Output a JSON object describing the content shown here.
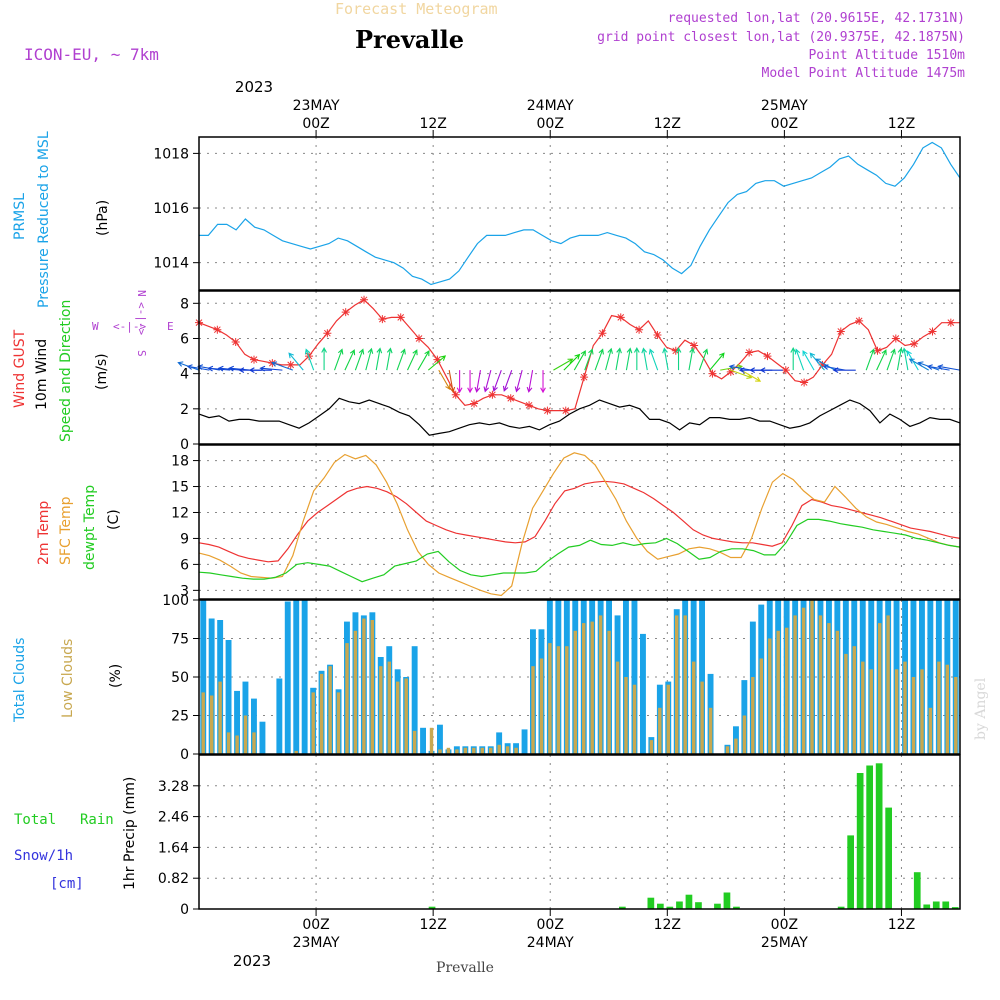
{
  "header": {
    "top_title": "Forecast Meteogram",
    "station": "Prevalle",
    "model": "ICON-EU, ~ 7km",
    "requested": "requested lon,lat (20.9615E, 42.1731N)",
    "grid_point": "grid point closest lon,lat (20.9375E, 42.1875N)",
    "point_alt": "Point Altitude 1510m",
    "model_alt": "Model Point Altitude 1475m",
    "footer_station": "Prevalle",
    "watermark": "by Angel"
  },
  "time_axis": {
    "top_year": "2023",
    "top_labels": [
      {
        "h": 12,
        "main": "00Z",
        "date": "23MAY"
      },
      {
        "h": 24,
        "main": "12Z",
        "date": ""
      },
      {
        "h": 36,
        "main": "00Z",
        "date": "24MAY"
      },
      {
        "h": 48,
        "main": "12Z",
        "date": ""
      },
      {
        "h": 60,
        "main": "00Z",
        "date": "25MAY"
      },
      {
        "h": 72,
        "main": "12Z",
        "date": ""
      }
    ],
    "bottom_year": "2023",
    "bottom_labels": [
      {
        "h": 12,
        "main": "00Z",
        "date": "23MAY"
      },
      {
        "h": 24,
        "main": "12Z",
        "date": ""
      },
      {
        "h": 36,
        "main": "00Z",
        "date": "24MAY"
      },
      {
        "h": 48,
        "main": "12Z",
        "date": ""
      },
      {
        "h": 60,
        "main": "00Z",
        "date": "25MAY"
      },
      {
        "h": 72,
        "main": "12Z",
        "date": ""
      }
    ]
  },
  "panel_labels": {
    "p1": {
      "l1": "PRMSL",
      "l2": "Pressure Reduced to MSL",
      "unit": "(hPa)"
    },
    "p2": {
      "l1": "Wind GUST",
      "l2": "10m Wind",
      "l3": "Speed and Direction",
      "unit": "(m/s)",
      "compass_w": "W",
      "compass_e": "E",
      "compass_arrow": "<-|->",
      "compass_n": "N",
      "compass_s": "S"
    },
    "p3": {
      "l1": "2m Temp",
      "l2": "SFC Temp",
      "l3": "dewpt Temp",
      "unit": "(C)"
    },
    "p4": {
      "l1": "Total Clouds",
      "l2": "Low Clouds",
      "unit": "(%)"
    },
    "p5": {
      "l1": "Total",
      "l1b": "Rain",
      "l2": "Snow/1h",
      "l3": "[cm]",
      "unit": "1hr Precip (mm)"
    }
  },
  "colors": {
    "pressure": "#1aa3e8",
    "gust": "#ee3333",
    "wind": "#000000",
    "t2m": "#ee3333",
    "sfc": "#e8a030",
    "dew": "#22cc22",
    "total_cloud": "#1aa3e8",
    "low_cloud": "#c8a850",
    "rain": "#22cc22",
    "label_purple": "#b040d0",
    "label_blue": "#3333dd"
  },
  "chart_data": [
    {
      "type": "line",
      "title": "PRMSL Pressure Reduced to MSL",
      "ylabel": "(hPa)",
      "ylim": [
        1013,
        1018.6
      ],
      "yticks": [
        "1014",
        "1016",
        "1018"
      ],
      "x_hours": "forecast hour, 0 = 22 May 12Z, hourly to 78",
      "series": [
        {
          "name": "PRMSL",
          "values": [
            1015.0,
            1015.0,
            1015.4,
            1015.4,
            1015.2,
            1015.6,
            1015.3,
            1015.2,
            1015.0,
            1014.8,
            1014.7,
            1014.6,
            1014.5,
            1014.6,
            1014.7,
            1014.9,
            1014.8,
            1014.6,
            1014.4,
            1014.2,
            1014.1,
            1014.0,
            1013.8,
            1013.5,
            1013.4,
            1013.2,
            1013.3,
            1013.4,
            1013.7,
            1014.2,
            1014.7,
            1015.0,
            1015.0,
            1015.0,
            1015.1,
            1015.2,
            1015.2,
            1015.0,
            1014.8,
            1014.7,
            1014.9,
            1015.0,
            1015.0,
            1015.0,
            1015.1,
            1015.0,
            1014.9,
            1014.7,
            1014.4,
            1014.3,
            1014.1,
            1013.8,
            1013.6,
            1013.9,
            1014.6,
            1015.2,
            1015.7,
            1016.2,
            1016.5,
            1016.6,
            1016.9,
            1017.0,
            1017.0,
            1016.8,
            1016.9,
            1017.0,
            1017.1,
            1017.3,
            1017.5,
            1017.8,
            1017.9,
            1017.6,
            1017.4,
            1017.2,
            1016.9,
            1016.8,
            1017.1,
            1017.6,
            1018.2,
            1018.4,
            1018.2,
            1017.6,
            1017.1
          ]
        }
      ]
    },
    {
      "type": "line",
      "title": "Wind GUST / 10m Wind Speed and Direction",
      "ylabel": "(m/s)",
      "ylim": [
        0,
        8.7
      ],
      "yticks": [
        "0",
        "2",
        "4",
        "6",
        "8"
      ],
      "series": [
        {
          "name": "Wind GUST",
          "values": [
            6.9,
            6.7,
            6.5,
            6.2,
            5.8,
            5.1,
            4.8,
            4.7,
            4.6,
            4.5,
            4.5,
            4.5,
            5.0,
            5.7,
            6.3,
            7.0,
            7.5,
            7.9,
            8.2,
            7.7,
            7.1,
            7.2,
            7.2,
            6.6,
            6.0,
            5.5,
            4.8,
            3.8,
            2.8,
            2.2,
            2.3,
            2.6,
            2.8,
            2.8,
            2.6,
            2.4,
            2.2,
            2.0,
            1.9,
            1.9,
            1.9,
            2.0,
            3.8,
            5.6,
            6.3,
            7.3,
            7.2,
            6.8,
            6.5,
            7.0,
            6.2,
            5.5,
            5.3,
            5.9,
            5.6,
            4.9,
            4.0,
            3.7,
            4.1,
            4.6,
            5.2,
            5.3,
            5.0,
            4.6,
            4.2,
            3.6,
            3.5,
            3.8,
            4.5,
            5.1,
            6.4,
            6.8,
            7.0,
            6.5,
            5.3,
            5.5,
            6.0,
            5.6,
            5.7,
            6.1,
            6.4,
            6.9,
            6.9,
            6.9
          ]
        },
        {
          "name": "10m Wind",
          "values": [
            1.7,
            1.5,
            1.6,
            1.3,
            1.4,
            1.4,
            1.3,
            1.3,
            1.3,
            1.1,
            0.9,
            1.2,
            1.6,
            2.0,
            2.6,
            2.4,
            2.3,
            2.5,
            2.3,
            2.1,
            1.8,
            1.6,
            1.1,
            0.5,
            0.6,
            0.7,
            0.9,
            1.1,
            1.2,
            1.1,
            1.2,
            1.0,
            0.9,
            1.0,
            0.8,
            1.1,
            1.3,
            1.7,
            2.0,
            2.2,
            2.5,
            2.3,
            2.1,
            2.2,
            2.0,
            1.4,
            1.4,
            1.2,
            0.8,
            1.2,
            1.1,
            1.5,
            1.5,
            1.4,
            1.4,
            1.5,
            1.3,
            1.3,
            1.1,
            0.9,
            1.0,
            1.2,
            1.6,
            1.9,
            2.2,
            2.5,
            2.3,
            1.9,
            1.2,
            1.7,
            1.4,
            1.0,
            1.2,
            1.5,
            1.4,
            1.4,
            1.2
          ]
        }
      ],
      "wind_arrows": {
        "row_value": 4.2,
        "dir_deg": [
          110,
          100,
          100,
          95,
          95,
          95,
          90,
          90,
          95,
          110,
          140,
          160,
          180,
          200,
          205,
          200,
          195,
          190,
          190,
          200,
          205,
          210,
          230,
          330,
          350,
          0,
          0,
          10,
          15,
          20,
          20,
          15,
          10,
          0,
          240,
          225,
          210,
          200,
          200,
          195,
          190,
          190,
          180,
          170,
          160,
          170,
          180,
          190,
          200,
          220,
          260,
          290,
          300,
          100,
          90,
          90,
          90,
          180,
          160,
          150,
          140,
          120,
          100,
          90,
          200,
          205,
          200,
          190,
          170,
          150,
          120,
          110,
          100,
          100
        ]
      }
    },
    {
      "type": "line",
      "title": "2m Temp / SFC Temp / dewpt Temp",
      "ylabel": "(C)",
      "ylim": [
        2.0,
        19.8
      ],
      "yticks": [
        "3",
        "6",
        "9",
        "12",
        "15",
        "18"
      ],
      "series": [
        {
          "name": "2m Temp",
          "values": [
            8.5,
            8.3,
            8.0,
            7.5,
            7.0,
            6.7,
            6.5,
            6.3,
            6.4,
            7.8,
            9.5,
            11.0,
            12.0,
            12.8,
            13.6,
            14.4,
            14.8,
            15.0,
            14.8,
            14.4,
            13.8,
            13.0,
            12.0,
            11.0,
            10.5,
            10.0,
            9.6,
            9.4,
            9.2,
            9.0,
            8.8,
            8.6,
            8.5,
            8.6,
            9.2,
            11.0,
            13.0,
            14.5,
            14.8,
            15.3,
            15.5,
            15.6,
            15.5,
            15.3,
            14.8,
            14.3,
            13.6,
            12.8,
            12.0,
            11.0,
            10.0,
            9.4,
            9.0,
            8.8,
            8.6,
            8.5,
            8.5,
            8.3,
            8.1,
            8.5,
            10.5,
            12.8,
            13.5,
            13.2,
            12.8,
            12.6,
            12.3,
            12.0,
            11.7,
            11.4,
            11.0,
            10.6,
            10.2,
            10.0,
            9.8,
            9.5,
            9.2,
            9.0
          ]
        },
        {
          "name": "SFC Temp",
          "values": [
            7.3,
            7.0,
            6.5,
            5.8,
            5.0,
            4.6,
            4.5,
            4.4,
            4.6,
            7.0,
            11.0,
            14.5,
            16.0,
            17.8,
            18.7,
            18.2,
            18.6,
            17.5,
            15.5,
            13.0,
            10.0,
            7.5,
            6.0,
            5.0,
            4.5,
            4.0,
            3.5,
            3.0,
            2.6,
            2.4,
            3.5,
            8.5,
            12.5,
            14.5,
            16.5,
            18.3,
            18.9,
            18.6,
            17.5,
            15.5,
            13.5,
            11.0,
            9.0,
            7.5,
            6.6,
            6.9,
            7.2,
            7.8,
            8.0,
            7.8,
            7.4,
            6.8,
            6.8,
            9.0,
            12.5,
            15.5,
            16.5,
            15.8,
            14.5,
            13.5,
            13.2,
            15.0,
            13.8,
            12.5,
            11.5,
            10.9,
            10.6,
            10.2,
            9.8,
            9.5,
            9.0,
            8.5,
            8.2,
            8.0
          ]
        },
        {
          "name": "dewpt Temp",
          "values": [
            5.1,
            5.0,
            4.8,
            4.6,
            4.4,
            4.3,
            4.3,
            4.5,
            5.0,
            6.0,
            6.2,
            6.0,
            5.8,
            5.2,
            4.6,
            4.0,
            4.4,
            4.8,
            5.8,
            6.1,
            6.4,
            7.2,
            7.5,
            6.3,
            5.3,
            4.8,
            4.6,
            4.8,
            5.0,
            5.0,
            5.0,
            5.2,
            6.3,
            7.2,
            8.0,
            8.2,
            8.8,
            8.3,
            8.2,
            8.5,
            8.2,
            8.4,
            8.5,
            9.0,
            8.4,
            7.5,
            6.6,
            6.8,
            7.5,
            7.8,
            7.8,
            7.6,
            7.1,
            7.1,
            8.5,
            10.5,
            11.2,
            11.2,
            11.0,
            10.7,
            10.5,
            10.3,
            10.0,
            9.8,
            9.6,
            9.4,
            9.0,
            8.8,
            8.5,
            8.2,
            8.0
          ]
        }
      ]
    },
    {
      "type": "bar",
      "title": "Total Clouds / Low Clouds",
      "ylabel": "(%)",
      "ylim": [
        0,
        100
      ],
      "yticks": [
        "0",
        "25",
        "50",
        "75",
        "100"
      ],
      "series": [
        {
          "name": "Total Clouds",
          "values": [
            100,
            88,
            87,
            74,
            41,
            47,
            36,
            21,
            0,
            49,
            99,
            100,
            100,
            43,
            54,
            58,
            42,
            86,
            92,
            90,
            92,
            63,
            70,
            55,
            50,
            70,
            17,
            2,
            19,
            3,
            5,
            5,
            5,
            5,
            5,
            14,
            7,
            7,
            16,
            81,
            81,
            100,
            100,
            100,
            100,
            100,
            100,
            100,
            100,
            90,
            100,
            100,
            78,
            11,
            45,
            47,
            94,
            100,
            100,
            100,
            52,
            0,
            6,
            18,
            48,
            86,
            97,
            100,
            100,
            100,
            100,
            100,
            100,
            100,
            100,
            100,
            100,
            100,
            100,
            100,
            100,
            100,
            100,
            100,
            100,
            100,
            100,
            100,
            100,
            100
          ]
        },
        {
          "name": "Low Clouds",
          "values": [
            40,
            38,
            47,
            14,
            12,
            25,
            14,
            0,
            0,
            0,
            0,
            2,
            0,
            40,
            52,
            57,
            40,
            72,
            80,
            88,
            87,
            57,
            60,
            47,
            49,
            15,
            0,
            17,
            3,
            4,
            3,
            4,
            4,
            4,
            4,
            6,
            5,
            4,
            0,
            57,
            62,
            72,
            70,
            70,
            80,
            85,
            86,
            90,
            80,
            60,
            50,
            45,
            0,
            9,
            30,
            45,
            90,
            90,
            60,
            47,
            30,
            0,
            5,
            10,
            25,
            50,
            62,
            75,
            80,
            82,
            90,
            95,
            100,
            90,
            85,
            80,
            65,
            70,
            60,
            55,
            85,
            90,
            55,
            60,
            50,
            55,
            30,
            60,
            58,
            50
          ]
        }
      ]
    },
    {
      "type": "bar",
      "title": "1hr Precip",
      "ylabel": "1hr Precip (mm)",
      "ylim": [
        0,
        4.1
      ],
      "yticks": [
        "0",
        "0.82",
        "1.64",
        "2.46",
        "3.28"
      ],
      "series": [
        {
          "name": "Total Rain",
          "values": [
            0,
            0,
            0,
            0,
            0,
            0,
            0,
            0,
            0,
            0,
            0,
            0,
            0,
            0,
            0,
            0,
            0,
            0,
            0,
            0,
            0,
            0,
            0,
            0,
            0.06,
            0,
            0,
            0,
            0,
            0,
            0,
            0,
            0,
            0,
            0,
            0,
            0,
            0,
            0,
            0,
            0,
            0,
            0,
            0,
            0.06,
            0,
            0,
            0.3,
            0.14,
            0.06,
            0.2,
            0.38,
            0.18,
            0,
            0.14,
            0.44,
            0.06,
            0,
            0,
            0,
            0,
            0,
            0,
            0,
            0,
            0,
            0,
            0.06,
            1.96,
            3.62,
            3.82,
            3.88,
            2.7,
            0,
            0,
            0.98,
            0.12,
            0.2,
            0.2,
            0.05
          ]
        },
        {
          "name": "Snow/1h",
          "values": [
            0,
            0,
            0,
            0,
            0,
            0,
            0,
            0,
            0,
            0,
            0,
            0,
            0,
            0,
            0,
            0,
            0,
            0,
            0,
            0,
            0,
            0,
            0,
            0,
            0,
            0,
            0,
            0,
            0,
            0,
            0,
            0,
            0,
            0,
            0,
            0,
            0,
            0,
            0,
            0,
            0,
            0,
            0,
            0,
            0,
            0,
            0,
            0,
            0,
            0,
            0,
            0,
            0,
            0,
            0,
            0,
            0,
            0,
            0,
            0,
            0,
            0,
            0,
            0,
            0,
            0,
            0,
            0,
            0,
            0,
            0,
            0,
            0,
            0,
            0,
            0,
            0,
            0,
            0,
            0
          ]
        }
      ]
    }
  ]
}
